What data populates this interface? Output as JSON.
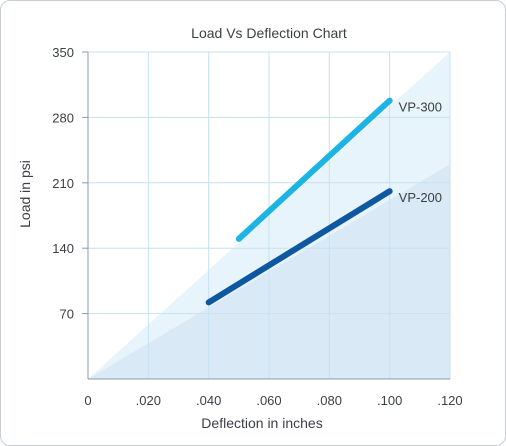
{
  "chart_data": {
    "type": "line",
    "title": "Load Vs Deflection Chart",
    "xlabel": "Deflection in inches",
    "ylabel": "Load in psi",
    "xlim": [
      0,
      0.12
    ],
    "ylim": [
      0,
      350
    ],
    "x_ticks": [
      {
        "value": 0,
        "label": "0"
      },
      {
        "value": 0.02,
        "label": ".020"
      },
      {
        "value": 0.04,
        "label": ".040"
      },
      {
        "value": 0.06,
        "label": ".060"
      },
      {
        "value": 0.08,
        "label": ".080"
      },
      {
        "value": 0.1,
        "label": ".100"
      },
      {
        "value": 0.12,
        "label": ".120"
      }
    ],
    "y_ticks": [
      {
        "value": 70,
        "label": "70"
      },
      {
        "value": 140,
        "label": "140"
      },
      {
        "value": 210,
        "label": "210"
      },
      {
        "value": 280,
        "label": "280"
      },
      {
        "value": 350,
        "label": "350"
      }
    ],
    "grid": true,
    "series": [
      {
        "name": "VP-300",
        "color": "#1cb4e3",
        "x": [
          0.05,
          0.1
        ],
        "y": [
          150,
          298
        ]
      },
      {
        "name": "VP-200",
        "color": "#0d58a0",
        "x": [
          0.04,
          0.1
        ],
        "y": [
          82,
          201
        ]
      }
    ]
  },
  "colors": {
    "grid": "#c5e2f2",
    "axis": "#8a9aa8",
    "band_light": "#e8f4fb",
    "band_dark": "#dae9f6",
    "text": "#3c3f45"
  }
}
